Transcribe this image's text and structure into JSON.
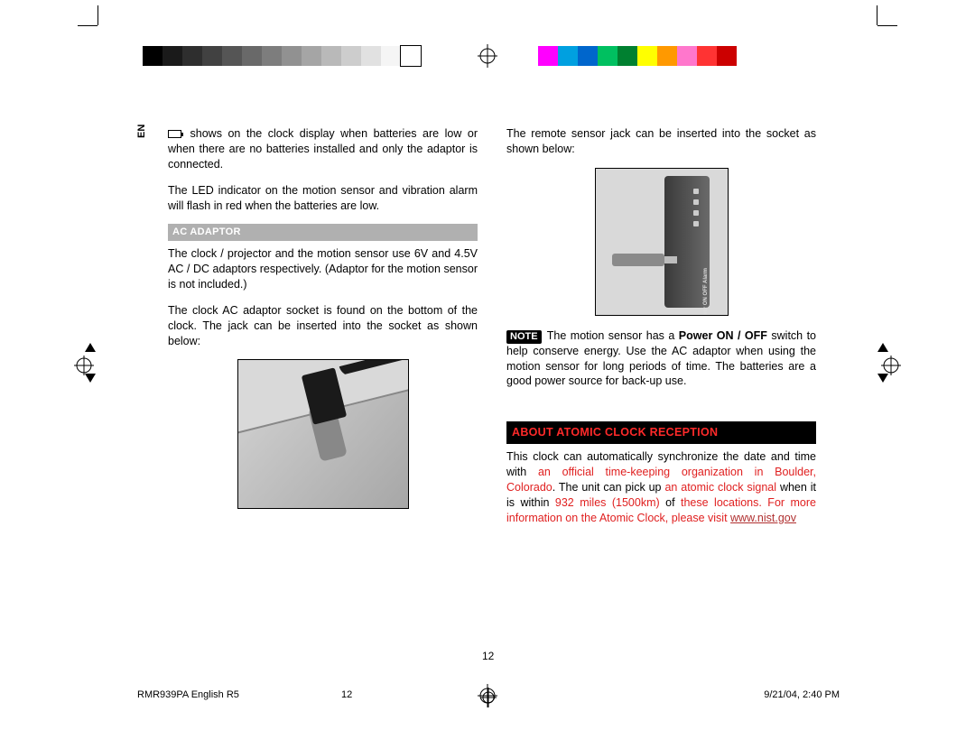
{
  "lang_badge": "EN",
  "colorbars": {
    "gray": [
      "#000000",
      "#1a1a1a",
      "#2e2e2e",
      "#414141",
      "#555555",
      "#696969",
      "#7d7d7d",
      "#919191",
      "#a5a5a5",
      "#b9b9b9",
      "#cdcdcd",
      "#e1e1e1",
      "#f5f5f5",
      "#ffffff"
    ],
    "color": [
      "#ff00ff",
      "#00a0e0",
      "#0066cc",
      "#00c060",
      "#008030",
      "#ffff00",
      "#ff9900",
      "#ff77cc",
      "#ff3333",
      "#cc0000"
    ]
  },
  "left": {
    "p1_a": " shows on the clock display when batteries are low or when there are no batteries installed and only the adaptor is connected.",
    "p2": "The LED indicator on the motion sensor and vibration alarm will flash in red when the batteries are low.",
    "sec1": "AC ADAPTOR",
    "p3": "The clock / projector and the motion sensor use 6V and 4.5V AC / DC adaptors respectively. (Adaptor for the motion sensor is not included.)",
    "p4": "The clock AC adaptor socket is found on the bottom of the clock. The jack can be inserted into the socket as shown below:"
  },
  "right": {
    "p1": "The remote sensor jack can be inserted into the socket as shown below:",
    "fig_label": "DC4.5V  ON  OFF  Power  ON  OFF  Alarm",
    "note_label": "NOTE",
    "note_a": " The motion sensor has a ",
    "note_b": "Power ON / OFF",
    "note_c": " switch to help conserve energy. Use the AC adaptor when using the motion sensor for long periods of time. The batteries are a good power source for back-up use.",
    "sec2": "ABOUT ATOMIC CLOCK RECEPTION",
    "p3_a": "This clock can automatically synchronize the date and time with ",
    "p3_b": "an official time-keeping organization in Boulder, Colorado",
    "p3_c": ". The unit can pick up ",
    "p3_d": "an atomic clock signal",
    "p3_e": " when it is within ",
    "p3_f": "932 miles (1500km)",
    "p3_g": " of ",
    "p3_h": "these locations. For more information on the Atomic Clock, please visit ",
    "p3_link": "www.nist.gov"
  },
  "page_number": "12",
  "footer": {
    "doc": "RMR939PA English R5",
    "page": "12",
    "timestamp": "9/21/04, 2:40 PM"
  }
}
